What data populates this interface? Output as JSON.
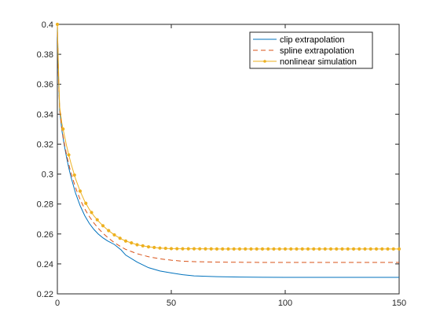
{
  "chart_data": {
    "type": "line",
    "xlim": [
      0,
      150
    ],
    "ylim": [
      0.22,
      0.4
    ],
    "x_ticks": [
      0,
      50,
      100,
      150
    ],
    "y_ticks": [
      0.22,
      0.24,
      0.26,
      0.28,
      0.3,
      0.32,
      0.34,
      0.36,
      0.38,
      0.4
    ],
    "x_tick_labels": [
      "0",
      "50",
      "100",
      "150"
    ],
    "y_tick_labels": [
      "0.22",
      "0.24",
      "0.26",
      "0.28",
      "0.3",
      "0.32",
      "0.34",
      "0.36",
      "0.38",
      "0.4"
    ],
    "grid": false,
    "legend_position": "top-right",
    "series": [
      {
        "name": "clip extrapolation",
        "color": "#0072BD",
        "style": "solid",
        "x": [
          0,
          0.5,
          1,
          2,
          3,
          4,
          5,
          6,
          8,
          10,
          12,
          14,
          16,
          18,
          20,
          22,
          25,
          28,
          30,
          35,
          40,
          45,
          50,
          55,
          60,
          70,
          80,
          90,
          100,
          110,
          120,
          130,
          140,
          150
        ],
        "y": [
          0.4,
          0.365,
          0.343,
          0.329,
          0.3196,
          0.3114,
          0.3042,
          0.2979,
          0.2872,
          0.2789,
          0.2723,
          0.2671,
          0.2631,
          0.2599,
          0.2574,
          0.2554,
          0.253,
          0.2493,
          0.2459,
          0.2412,
          0.2375,
          0.2353,
          0.234,
          0.2328,
          0.232,
          0.2315,
          0.2312,
          0.2311,
          0.231,
          0.231,
          0.231,
          0.231,
          0.231,
          0.231
        ]
      },
      {
        "name": "spline extrapolation",
        "color": "#D95319",
        "style": "dashed",
        "x": [
          0,
          0.5,
          1,
          2,
          3,
          4,
          5,
          6,
          8,
          10,
          12,
          14,
          16,
          18,
          20,
          22,
          25,
          28,
          30,
          35,
          40,
          45,
          50,
          55,
          60,
          70,
          80,
          90,
          100,
          110,
          120,
          130,
          140,
          150
        ],
        "y": [
          0.4,
          0.365,
          0.343,
          0.3297,
          0.3209,
          0.3133,
          0.3066,
          0.3007,
          0.2908,
          0.283,
          0.2768,
          0.2717,
          0.2674,
          0.2637,
          0.2605,
          0.2578,
          0.2542,
          0.2514,
          0.2497,
          0.2468,
          0.2448,
          0.2434,
          0.2425,
          0.2418,
          0.2415,
          0.2412,
          0.2411,
          0.241,
          0.241,
          0.241,
          0.241,
          0.241,
          0.241,
          0.241
        ]
      },
      {
        "name": "nonlinear simulation",
        "color": "#EDB120",
        "style": "solid-marker",
        "x": [
          0,
          0.5,
          1,
          2,
          3,
          4,
          5,
          6,
          8,
          10,
          12,
          14,
          16,
          18,
          20,
          22,
          25,
          28,
          30,
          35,
          40,
          45,
          50,
          55,
          60,
          70,
          80,
          90,
          100,
          110,
          120,
          130,
          140,
          150
        ],
        "y": [
          0.4,
          0.37,
          0.345,
          0.3338,
          0.3264,
          0.3192,
          0.3128,
          0.307,
          0.2968,
          0.2886,
          0.2818,
          0.2765,
          0.2722,
          0.2686,
          0.2655,
          0.2628,
          0.2594,
          0.2567,
          0.2553,
          0.2528,
          0.2514,
          0.2506,
          0.2502,
          0.2501,
          0.2501,
          0.25,
          0.25,
          0.25,
          0.25,
          0.25,
          0.25,
          0.25,
          0.25,
          0.25
        ]
      }
    ]
  }
}
